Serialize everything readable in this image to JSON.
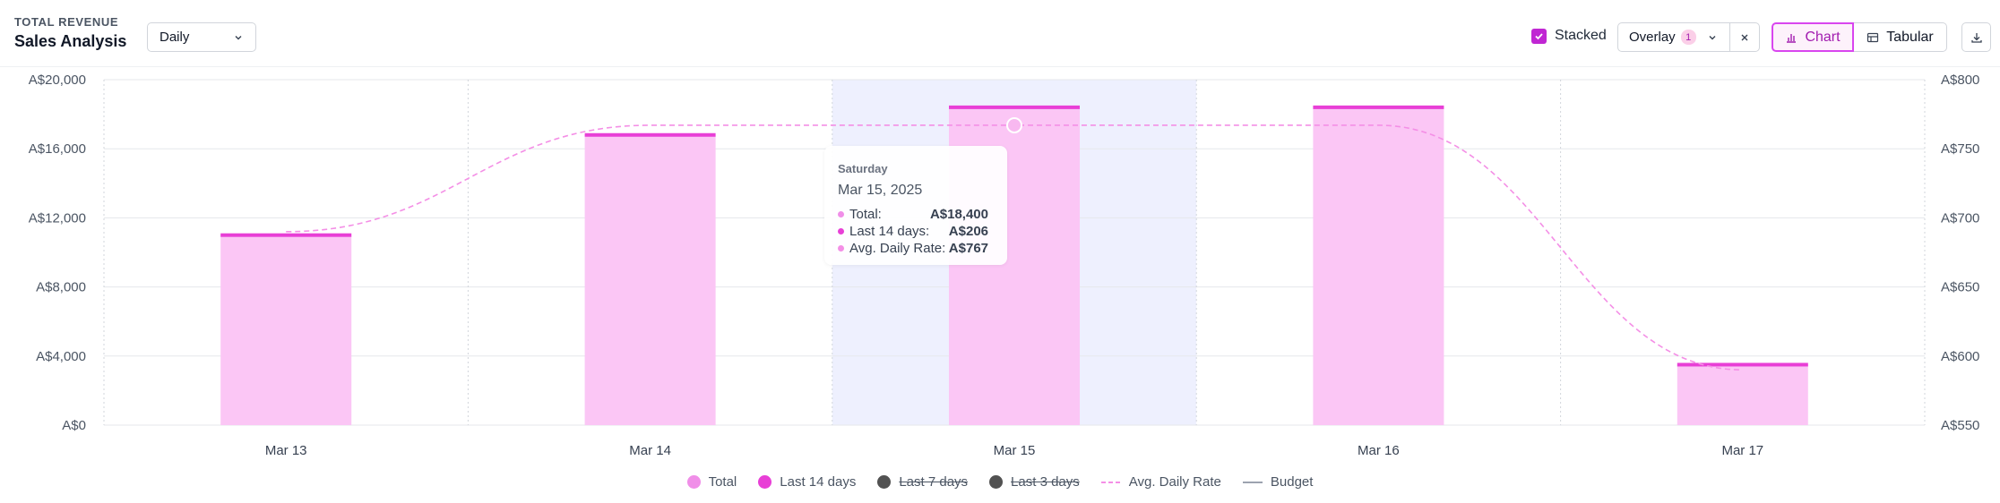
{
  "header": {
    "eyebrow": "TOTAL REVENUE",
    "title": "Sales Analysis",
    "period_select": "Daily",
    "stacked_label": "Stacked",
    "stacked_checked": true,
    "overlay_label": "Overlay",
    "overlay_count": "1",
    "view_chart_label": "Chart",
    "view_tabular_label": "Tabular"
  },
  "colors": {
    "accent": "#c026d3",
    "bar_fill": "#fbc6f5",
    "bar_top": "#e83fd6",
    "rate_line": "#f48fe6",
    "highlight": "#eef0fe",
    "legend_total": "#f08ee8",
    "legend_last14": "#e83fd6",
    "legend_off": "#525252",
    "legend_budget": "#9ca3af"
  },
  "chart_data": {
    "type": "bar",
    "categories": [
      "Mar 13",
      "Mar 14",
      "Mar 15",
      "Mar 16",
      "Mar 17"
    ],
    "series": [
      {
        "name": "Total",
        "values": [
          11000,
          16800,
          18400,
          18400,
          3500
        ]
      },
      {
        "name": "Last 14 days",
        "values": [
          206,
          206,
          206,
          206,
          206
        ]
      },
      {
        "name": "Avg. Daily Rate",
        "axis": "right",
        "style": "dashed-line",
        "values": [
          690,
          767,
          767,
          767,
          590
        ]
      }
    ],
    "y_left": {
      "min": 0,
      "max": 20000,
      "ticks": [
        "A$0",
        "A$4,000",
        "A$8,000",
        "A$12,000",
        "A$16,000",
        "A$20,000"
      ]
    },
    "y_right": {
      "min": 550,
      "max": 800,
      "ticks": [
        "A$550",
        "A$600",
        "A$650",
        "A$700",
        "A$750",
        "A$800"
      ]
    },
    "highlighted_category": "Mar 15",
    "grid": true,
    "legend_position": "bottom-center",
    "legend": [
      {
        "label": "Total",
        "type": "dot",
        "active": true
      },
      {
        "label": "Last 14 days",
        "type": "dot",
        "active": true
      },
      {
        "label": "Last 7 days",
        "type": "dot",
        "active": false
      },
      {
        "label": "Last 3 days",
        "type": "dot",
        "active": false
      },
      {
        "label": "Avg. Daily Rate",
        "type": "dashed",
        "active": true
      },
      {
        "label": "Budget",
        "type": "line",
        "active": true
      }
    ]
  },
  "tooltip": {
    "day": "Saturday",
    "date": "Mar 15, 2025",
    "rows": [
      {
        "label": "Total:",
        "value": "A$18,400"
      },
      {
        "label": "Last 14 days:",
        "value": "A$206"
      },
      {
        "label": "Avg. Daily Rate:",
        "value": "A$767"
      }
    ]
  }
}
